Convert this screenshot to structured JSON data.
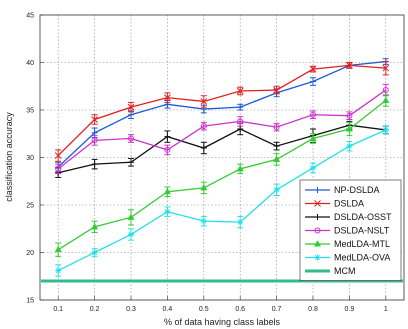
{
  "chart_data": {
    "type": "line",
    "xlabel": "% of data having class labels",
    "ylabel": "classification accuracy",
    "x": [
      0.1,
      0.2,
      0.3,
      0.4,
      0.5,
      0.6,
      0.7,
      0.8,
      0.9,
      1
    ],
    "x_ticks": [
      "0.1",
      "0.2",
      "0.3",
      "0.4",
      "0.5",
      "0.6",
      "0.7",
      "0.8",
      "0.9",
      "1"
    ],
    "y_ticks": [
      "15",
      "20",
      "25",
      "30",
      "35",
      "40",
      "45"
    ],
    "xlim": [
      0.05,
      1.05
    ],
    "ylim": [
      15,
      45
    ],
    "grid": true,
    "legend_position": "bottom-right",
    "series": [
      {
        "name": "NP-DSLDA",
        "color": "#1f5bd6",
        "marker": "plus",
        "values": [
          29.0,
          32.6,
          34.5,
          35.6,
          35.1,
          35.3,
          36.8,
          38.0,
          39.7,
          40.1
        ],
        "err": [
          0.5,
          0.5,
          0.4,
          0.4,
          0.4,
          0.3,
          0.4,
          0.4,
          0.3,
          0.3
        ]
      },
      {
        "name": "DSLDA",
        "color": "#e02020",
        "marker": "x",
        "values": [
          30.2,
          34.0,
          35.3,
          36.3,
          35.9,
          37.0,
          37.1,
          39.3,
          39.7,
          39.4
        ],
        "err": [
          0.6,
          0.5,
          0.5,
          0.5,
          0.6,
          0.4,
          0.4,
          0.3,
          0.3,
          0.7
        ]
      },
      {
        "name": "DSLDA-OSST",
        "color": "#111111",
        "marker": "plus",
        "values": [
          28.4,
          29.3,
          29.5,
          32.2,
          31.0,
          33.0,
          31.2,
          32.3,
          33.4,
          32.9
        ],
        "err": [
          0.5,
          0.5,
          0.4,
          0.6,
          0.6,
          0.6,
          0.4,
          0.7,
          0.4,
          0.4
        ]
      },
      {
        "name": "DSLDA-NSLT",
        "color": "#cc33cc",
        "marker": "circle",
        "values": [
          28.8,
          31.8,
          32.0,
          30.8,
          33.3,
          33.8,
          33.2,
          34.5,
          34.4,
          37.1
        ],
        "err": [
          0.5,
          0.5,
          0.4,
          0.5,
          0.4,
          0.5,
          0.4,
          0.4,
          0.4,
          0.6
        ]
      },
      {
        "name": "MedLDA-MTL",
        "color": "#33cc33",
        "marker": "triangle",
        "values": [
          20.3,
          22.7,
          23.7,
          26.4,
          26.8,
          28.8,
          29.8,
          32.0,
          33.0,
          36.0
        ],
        "err": [
          0.7,
          0.6,
          0.8,
          0.5,
          0.6,
          0.5,
          0.6,
          0.5,
          0.7,
          0.6
        ]
      },
      {
        "name": "MedLDA-OVA",
        "color": "#22e0e8",
        "marker": "star",
        "values": [
          18.1,
          20.0,
          21.9,
          24.3,
          23.3,
          23.2,
          26.6,
          28.9,
          31.2,
          32.9
        ],
        "err": [
          0.6,
          0.4,
          0.6,
          0.5,
          0.5,
          0.6,
          0.6,
          0.5,
          0.5,
          0.4
        ]
      },
      {
        "name": "MCM",
        "color": "#33bb88",
        "marker": "none",
        "values": [
          17.0,
          17.0,
          17.0,
          17.0,
          17.0,
          17.0,
          17.0,
          17.0,
          17.0,
          17.0
        ],
        "err": null
      }
    ]
  }
}
